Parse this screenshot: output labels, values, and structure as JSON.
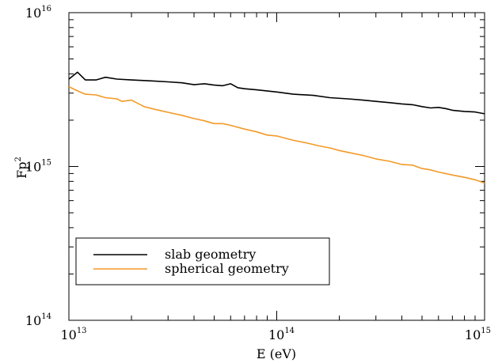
{
  "chart_data": {
    "type": "line",
    "xlabel": "E (eV)",
    "ylabel_base": "Fp",
    "ylabel_exp": "2",
    "x_scale": "log",
    "y_scale": "log",
    "xlim": [
      10000000000000.0,
      1000000000000000.0
    ],
    "ylim": [
      100000000000000.0,
      1e+16
    ],
    "grid": false,
    "legend_position": "lower-left",
    "x_ticks": [
      {
        "base": "10",
        "exp": "13",
        "value": 10000000000000.0
      },
      {
        "base": "10",
        "exp": "14",
        "value": 100000000000000.0
      },
      {
        "base": "10",
        "exp": "15",
        "value": 1000000000000000.0
      }
    ],
    "y_ticks": [
      {
        "base": "10",
        "exp": "14",
        "value": 100000000000000.0
      },
      {
        "base": "10",
        "exp": "15",
        "value": 1000000000000000.0
      },
      {
        "base": "10",
        "exp": "16",
        "value": 1e+16
      }
    ],
    "series": [
      {
        "name": "slab geometry",
        "color": "#000000",
        "x": [
          10000000000000.0,
          11000000000000.0,
          12000000000000.0,
          13500000000000.0,
          15000000000000.0,
          17000000000000.0,
          20000000000000.0,
          25000000000000.0,
          30000000000000.0,
          35000000000000.0,
          40000000000000.0,
          45000000000000.0,
          50000000000000.0,
          55000000000000.0,
          60000000000000.0,
          65000000000000.0,
          70000000000000.0,
          80000000000000.0,
          100000000000000.0,
          120000000000000.0,
          150000000000000.0,
          180000000000000.0,
          220000000000000.0,
          260000000000000.0,
          300000000000000.0,
          350000000000000.0,
          400000000000000.0,
          450000000000000.0,
          500000000000000.0,
          550000000000000.0,
          600000000000000.0,
          650000000000000.0,
          700000000000000.0,
          800000000000000.0,
          900000000000000.0,
          1000000000000000.0
        ],
        "y": [
          3700000000000000.0,
          4100000000000000.0,
          3650000000000000.0,
          3650000000000000.0,
          3800000000000000.0,
          3700000000000000.0,
          3650000000000000.0,
          3600000000000000.0,
          3550000000000000.0,
          3500000000000000.0,
          3400000000000000.0,
          3450000000000000.0,
          3380000000000000.0,
          3350000000000000.0,
          3450000000000000.0,
          3250000000000000.0,
          3200000000000000.0,
          3150000000000000.0,
          3050000000000000.0,
          2950000000000000.0,
          2900000000000000.0,
          2800000000000000.0,
          2750000000000000.0,
          2700000000000000.0,
          2650000000000000.0,
          2600000000000000.0,
          2550000000000000.0,
          2520000000000000.0,
          2450000000000000.0,
          2400000000000000.0,
          2420000000000000.0,
          2380000000000000.0,
          2320000000000000.0,
          2280000000000000.0,
          2260000000000000.0,
          2200000000000000.0
        ]
      },
      {
        "name": "spherical geometry",
        "color": "#f39a27",
        "x": [
          10000000000000.0,
          11000000000000.0,
          12000000000000.0,
          13500000000000.0,
          15000000000000.0,
          17000000000000.0,
          18000000000000.0,
          20000000000000.0,
          23000000000000.0,
          26000000000000.0,
          30000000000000.0,
          35000000000000.0,
          40000000000000.0,
          45000000000000.0,
          50000000000000.0,
          55000000000000.0,
          60000000000000.0,
          70000000000000.0,
          80000000000000.0,
          90000000000000.0,
          100000000000000.0,
          120000000000000.0,
          140000000000000.0,
          160000000000000.0,
          180000000000000.0,
          200000000000000.0,
          230000000000000.0,
          260000000000000.0,
          300000000000000.0,
          350000000000000.0,
          400000000000000.0,
          450000000000000.0,
          500000000000000.0,
          550000000000000.0,
          600000000000000.0,
          700000000000000.0,
          800000000000000.0,
          900000000000000.0,
          1000000000000000.0
        ],
        "y": [
          3300000000000000.0,
          3100000000000000.0,
          2950000000000000.0,
          2920000000000000.0,
          2800000000000000.0,
          2750000000000000.0,
          2650000000000000.0,
          2700000000000000.0,
          2450000000000000.0,
          2350000000000000.0,
          2250000000000000.0,
          2150000000000000.0,
          2050000000000000.0,
          1980000000000000.0,
          1900000000000000.0,
          1900000000000000.0,
          1850000000000000.0,
          1750000000000000.0,
          1680000000000000.0,
          1600000000000000.0,
          1580000000000000.0,
          1480000000000000.0,
          1420000000000000.0,
          1360000000000000.0,
          1320000000000000.0,
          1270000000000000.0,
          1220000000000000.0,
          1180000000000000.0,
          1120000000000000.0,
          1080000000000000.0,
          1030000000000000.0,
          1020000000000000.0,
          970000000000000.0,
          950000000000000.0,
          920000000000000.0,
          880000000000000.0,
          850000000000000.0,
          820000000000000.0,
          780000000000000.0
        ]
      }
    ]
  }
}
